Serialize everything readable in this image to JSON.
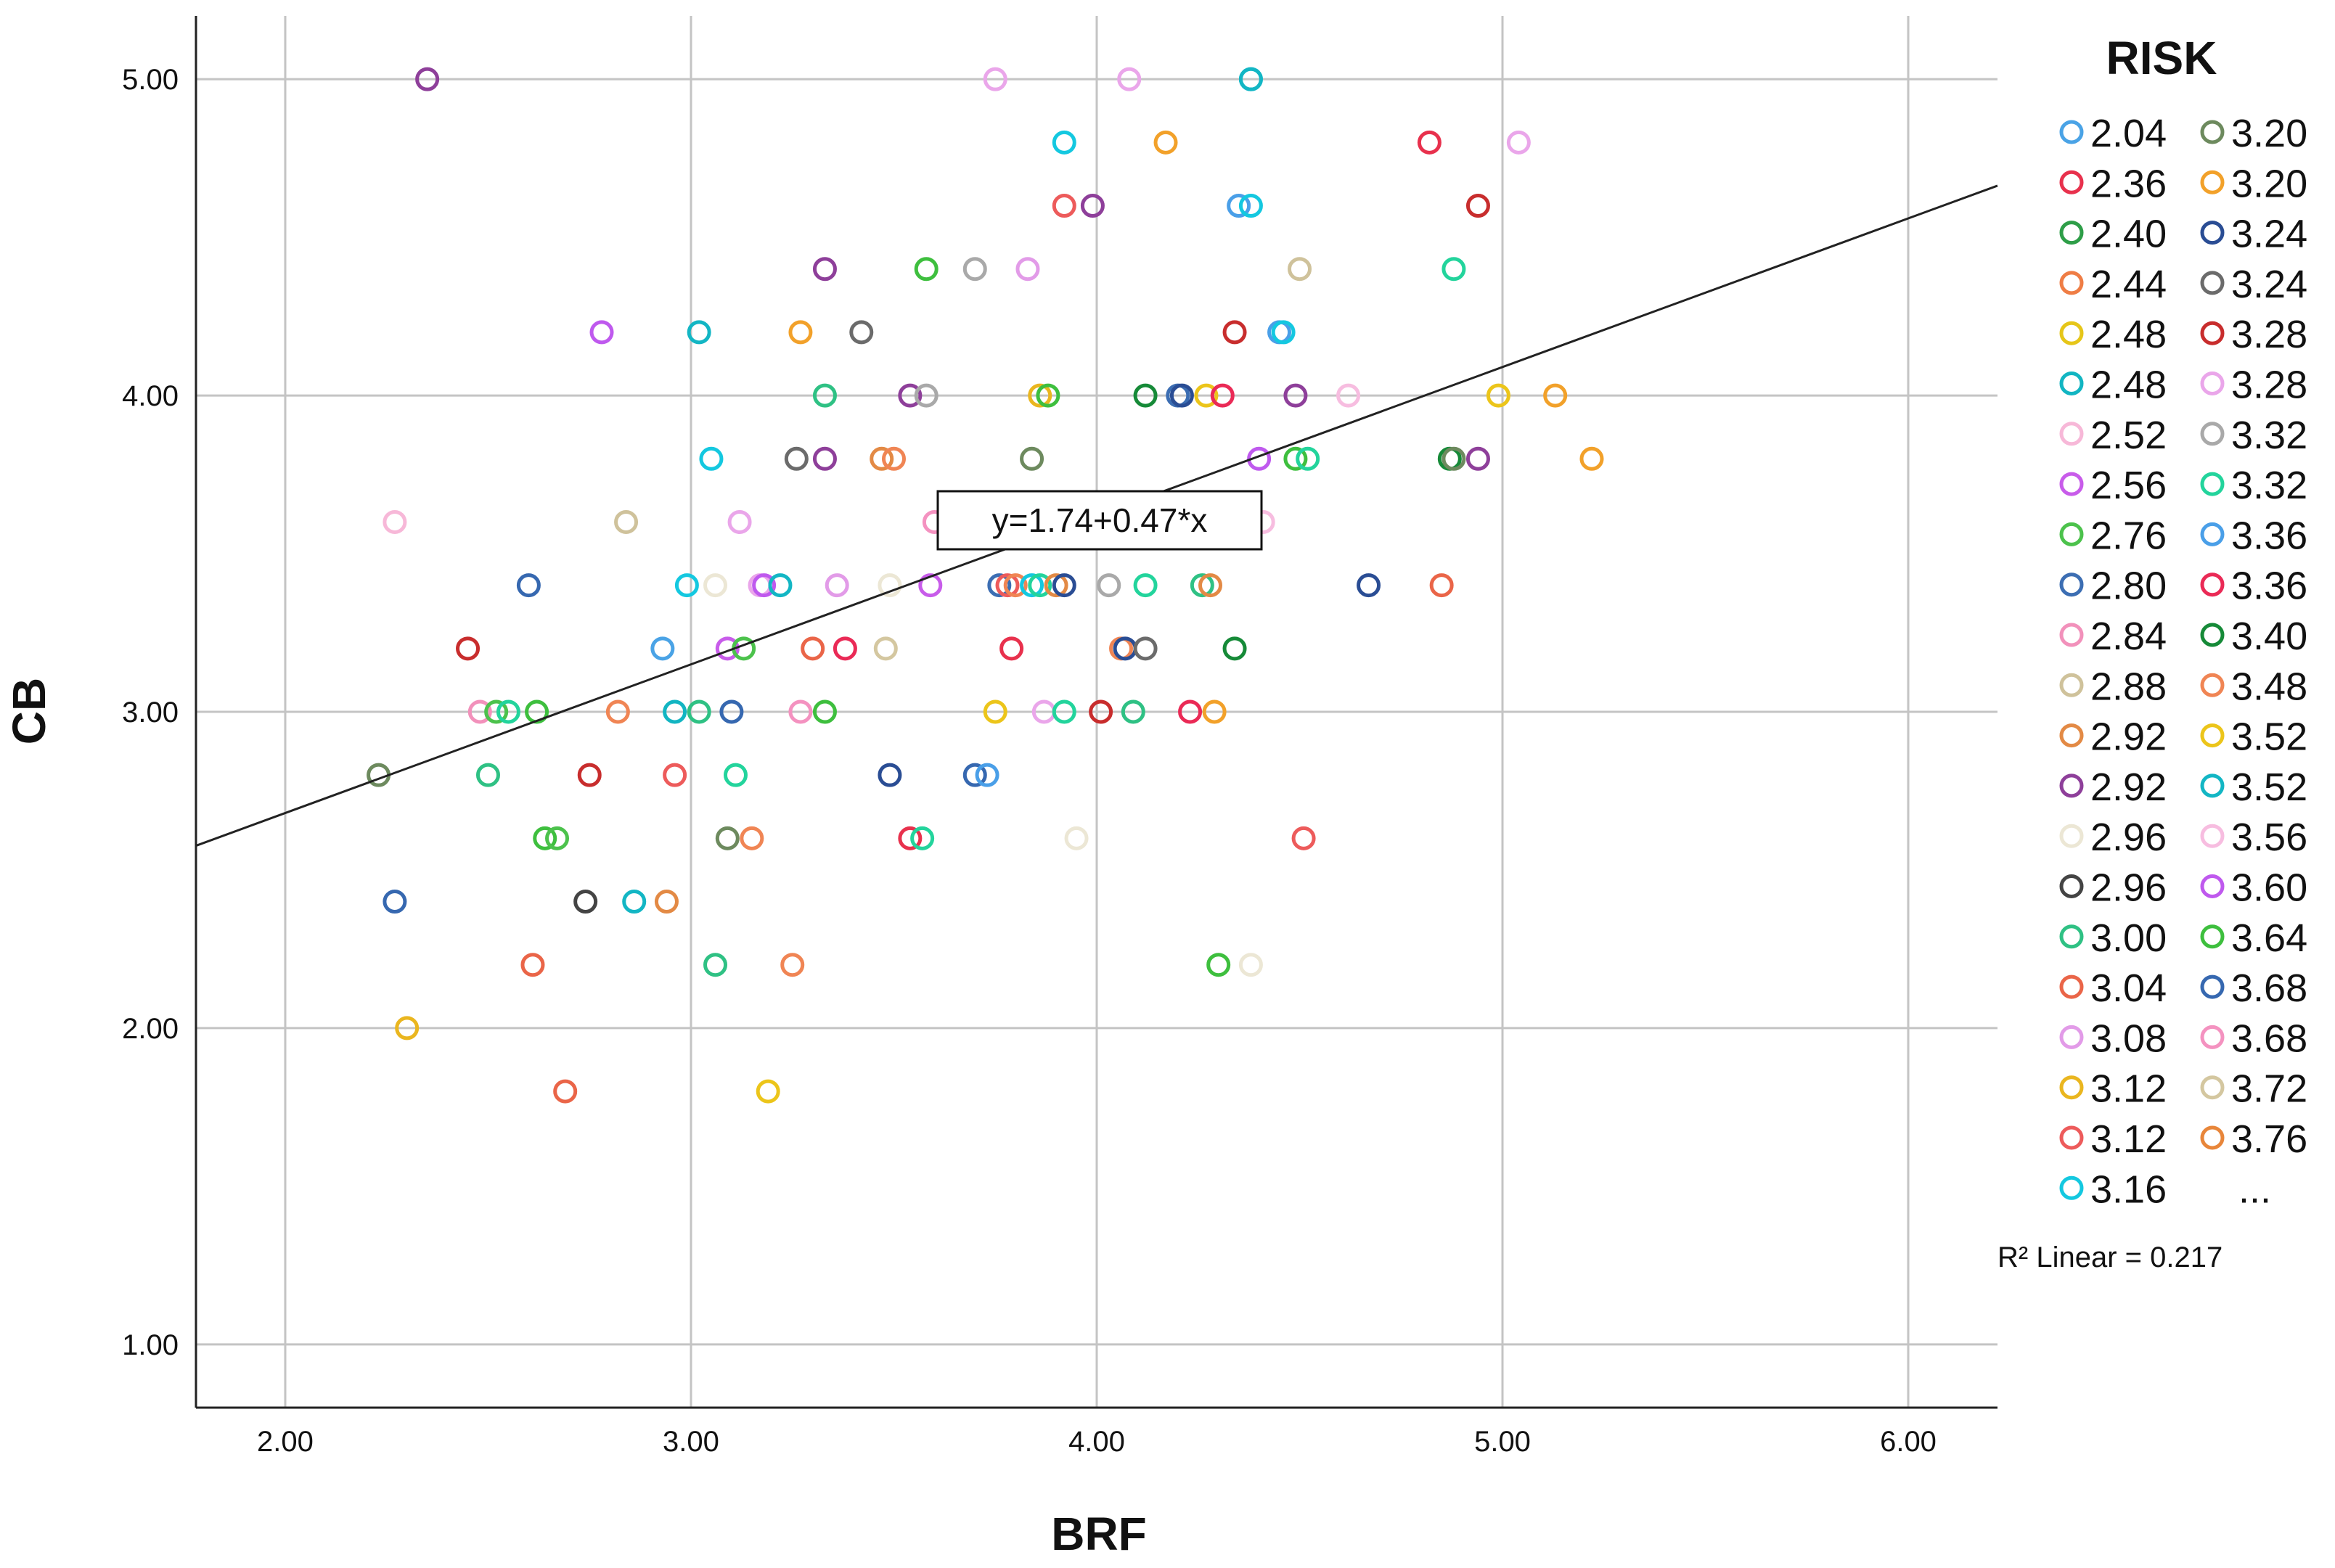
{
  "chart_data": {
    "type": "scatter",
    "xlabel": "BRF",
    "ylabel": "CB",
    "xlim": [
      1.78,
      6.22
    ],
    "ylim": [
      0.8,
      5.2
    ],
    "x_ticks": [
      "2.00",
      "3.00",
      "4.00",
      "5.00",
      "6.00"
    ],
    "y_ticks": [
      "1.00",
      "2.00",
      "3.00",
      "4.00",
      "5.00"
    ],
    "grid": true,
    "marker": "open-circle",
    "fit_line": {
      "type": "linear",
      "intercept": 1.74,
      "slope": 0.47,
      "equation_label": "y=1.74+0.47*x",
      "r2_label": "R² Linear = 0.217"
    },
    "legend": {
      "title": "RISK",
      "placement": "right",
      "more_label": "...",
      "entries": [
        {
          "label": "2.04",
          "color": "#4aa3e6"
        },
        {
          "label": "2.36",
          "color": "#e8314d"
        },
        {
          "label": "2.40",
          "color": "#2e9e48"
        },
        {
          "label": "2.44",
          "color": "#ef7d45"
        },
        {
          "label": "2.48",
          "color": "#e6c619"
        },
        {
          "label": "2.48",
          "color": "#12b5c2"
        },
        {
          "label": "2.52",
          "color": "#f7b8d8"
        },
        {
          "label": "2.56",
          "color": "#c85cea"
        },
        {
          "label": "2.76",
          "color": "#4cc24c"
        },
        {
          "label": "2.80",
          "color": "#3c6eb3"
        },
        {
          "label": "2.84",
          "color": "#f291bb"
        },
        {
          "label": "2.88",
          "color": "#cfc29b"
        },
        {
          "label": "2.92",
          "color": "#e38a45"
        },
        {
          "label": "2.92",
          "color": "#8e3f9a"
        },
        {
          "label": "2.96",
          "color": "#ece7d5"
        },
        {
          "label": "2.96",
          "color": "#444444"
        },
        {
          "label": "3.00",
          "color": "#2fc184"
        },
        {
          "label": "3.04",
          "color": "#ea6548"
        },
        {
          "label": "3.08",
          "color": "#e29be8"
        },
        {
          "label": "3.12",
          "color": "#eab61f"
        },
        {
          "label": "3.12",
          "color": "#ed5b5b"
        },
        {
          "label": "3.16",
          "color": "#14c8e0"
        },
        {
          "label": "3.20",
          "color": "#6d8a5e"
        },
        {
          "label": "3.20",
          "color": "#f2a12a"
        },
        {
          "label": "3.24",
          "color": "#2a4d94"
        },
        {
          "label": "3.24",
          "color": "#6b6b6b"
        },
        {
          "label": "3.28",
          "color": "#c82d2d"
        },
        {
          "label": "3.28",
          "color": "#eaa6ea"
        },
        {
          "label": "3.32",
          "color": "#a9a9a9"
        },
        {
          "label": "3.32",
          "color": "#23d49c"
        },
        {
          "label": "3.36",
          "color": "#4a9fe8"
        },
        {
          "label": "3.36",
          "color": "#ea2a56"
        },
        {
          "label": "3.40",
          "color": "#168a38"
        },
        {
          "label": "3.48",
          "color": "#f08554"
        },
        {
          "label": "3.52",
          "color": "#ecc51a"
        },
        {
          "label": "3.52",
          "color": "#13b6c4"
        },
        {
          "label": "3.56",
          "color": "#f7bde0"
        },
        {
          "label": "3.60",
          "color": "#bf59ee"
        },
        {
          "label": "3.64",
          "color": "#3ebf3e"
        },
        {
          "label": "3.68",
          "color": "#3668b0"
        },
        {
          "label": "3.68",
          "color": "#f492c0"
        },
        {
          "label": "3.72",
          "color": "#d4c7a0"
        },
        {
          "label": "3.76",
          "color": "#e8863a"
        }
      ]
    },
    "points": [
      [
        2.35,
        5.0,
        13
      ],
      [
        3.75,
        5.0,
        27
      ],
      [
        4.08,
        5.0,
        27
      ],
      [
        4.38,
        5.0,
        21
      ],
      [
        4.38,
        5.0,
        35
      ],
      [
        3.92,
        4.8,
        21
      ],
      [
        4.17,
        4.8,
        23
      ],
      [
        4.82,
        4.8,
        1
      ],
      [
        5.04,
        4.8,
        27
      ],
      [
        3.92,
        4.6,
        20
      ],
      [
        3.99,
        4.6,
        13
      ],
      [
        4.35,
        4.6,
        30
      ],
      [
        4.38,
        4.6,
        21
      ],
      [
        4.94,
        4.6,
        26
      ],
      [
        3.33,
        4.4,
        13
      ],
      [
        3.58,
        4.4,
        38
      ],
      [
        3.7,
        4.4,
        28
      ],
      [
        3.83,
        4.4,
        18
      ],
      [
        4.5,
        4.4,
        11
      ],
      [
        4.88,
        4.4,
        29
      ],
      [
        2.78,
        4.2,
        37
      ],
      [
        3.02,
        4.2,
        35
      ],
      [
        3.27,
        4.2,
        23
      ],
      [
        3.42,
        4.2,
        25
      ],
      [
        4.34,
        4.2,
        26
      ],
      [
        4.45,
        4.2,
        30
      ],
      [
        4.46,
        4.2,
        21
      ],
      [
        3.33,
        4.0,
        16
      ],
      [
        3.54,
        4.0,
        13
      ],
      [
        3.58,
        4.0,
        28
      ],
      [
        3.86,
        4.0,
        19
      ],
      [
        3.88,
        4.0,
        38
      ],
      [
        4.12,
        4.0,
        32
      ],
      [
        4.2,
        4.0,
        9
      ],
      [
        4.21,
        4.0,
        24
      ],
      [
        4.27,
        4.0,
        34
      ],
      [
        4.31,
        4.0,
        31
      ],
      [
        4.49,
        4.0,
        13
      ],
      [
        4.62,
        4.0,
        36
      ],
      [
        4.99,
        4.0,
        34
      ],
      [
        5.13,
        4.0,
        23
      ],
      [
        3.05,
        3.8,
        21
      ],
      [
        3.26,
        3.8,
        25
      ],
      [
        3.33,
        3.8,
        13
      ],
      [
        3.47,
        3.8,
        12
      ],
      [
        3.5,
        3.8,
        33
      ],
      [
        3.84,
        3.8,
        22
      ],
      [
        4.4,
        3.8,
        37
      ],
      [
        4.49,
        3.8,
        38
      ],
      [
        4.52,
        3.8,
        29
      ],
      [
        4.87,
        3.8,
        32
      ],
      [
        4.88,
        3.8,
        22
      ],
      [
        4.94,
        3.8,
        13
      ],
      [
        5.22,
        3.8,
        23
      ],
      [
        2.27,
        3.6,
        6
      ],
      [
        2.84,
        3.6,
        11
      ],
      [
        3.12,
        3.6,
        27
      ],
      [
        3.6,
        3.6,
        40
      ],
      [
        4.41,
        3.6,
        36
      ],
      [
        2.6,
        3.4,
        39
      ],
      [
        2.99,
        3.4,
        21
      ],
      [
        3.06,
        3.4,
        14
      ],
      [
        3.17,
        3.4,
        27
      ],
      [
        3.18,
        3.4,
        37
      ],
      [
        3.22,
        3.4,
        35
      ],
      [
        3.36,
        3.4,
        18
      ],
      [
        3.49,
        3.4,
        14
      ],
      [
        3.59,
        3.4,
        7
      ],
      [
        3.76,
        3.4,
        9
      ],
      [
        3.78,
        3.4,
        20
      ],
      [
        3.8,
        3.4,
        33
      ],
      [
        3.84,
        3.4,
        21
      ],
      [
        3.86,
        3.4,
        29
      ],
      [
        3.9,
        3.4,
        12
      ],
      [
        3.92,
        3.4,
        24
      ],
      [
        4.03,
        3.4,
        28
      ],
      [
        4.12,
        3.4,
        29
      ],
      [
        4.26,
        3.4,
        16
      ],
      [
        4.28,
        3.4,
        12
      ],
      [
        4.67,
        3.4,
        24
      ],
      [
        4.85,
        3.4,
        17
      ],
      [
        2.45,
        3.2,
        26
      ],
      [
        2.93,
        3.2,
        0
      ],
      [
        3.09,
        3.2,
        7
      ],
      [
        3.13,
        3.2,
        8
      ],
      [
        3.3,
        3.2,
        17
      ],
      [
        3.38,
        3.2,
        31
      ],
      [
        3.48,
        3.2,
        41
      ],
      [
        3.79,
        3.2,
        1
      ],
      [
        4.06,
        3.2,
        33
      ],
      [
        4.07,
        3.2,
        24
      ],
      [
        4.12,
        3.2,
        25
      ],
      [
        4.34,
        3.2,
        32
      ],
      [
        2.48,
        3.0,
        10
      ],
      [
        2.52,
        3.0,
        8
      ],
      [
        2.55,
        3.0,
        29
      ],
      [
        2.62,
        3.0,
        38
      ],
      [
        2.82,
        3.0,
        33
      ],
      [
        2.96,
        3.0,
        5
      ],
      [
        3.02,
        3.0,
        16
      ],
      [
        3.1,
        3.0,
        39
      ],
      [
        3.27,
        3.0,
        40
      ],
      [
        3.33,
        3.0,
        38
      ],
      [
        3.75,
        3.0,
        34
      ],
      [
        3.87,
        3.0,
        27
      ],
      [
        3.92,
        3.0,
        29
      ],
      [
        4.01,
        3.0,
        26
      ],
      [
        4.09,
        3.0,
        16
      ],
      [
        4.23,
        3.0,
        31
      ],
      [
        4.29,
        3.0,
        23
      ],
      [
        2.23,
        2.8,
        22
      ],
      [
        2.5,
        2.8,
        16
      ],
      [
        2.75,
        2.8,
        26
      ],
      [
        2.96,
        2.8,
        20
      ],
      [
        3.11,
        2.8,
        29
      ],
      [
        3.49,
        2.8,
        24
      ],
      [
        3.7,
        2.8,
        39
      ],
      [
        3.73,
        2.8,
        30
      ],
      [
        2.64,
        2.6,
        38
      ],
      [
        2.67,
        2.6,
        8
      ],
      [
        3.09,
        2.6,
        22
      ],
      [
        3.15,
        2.6,
        33
      ],
      [
        3.54,
        2.6,
        1
      ],
      [
        3.57,
        2.6,
        29
      ],
      [
        3.95,
        2.6,
        14
      ],
      [
        4.51,
        2.6,
        20
      ],
      [
        2.27,
        2.4,
        39
      ],
      [
        2.74,
        2.4,
        15
      ],
      [
        2.86,
        2.4,
        35
      ],
      [
        2.94,
        2.4,
        12
      ],
      [
        2.61,
        2.2,
        17
      ],
      [
        3.06,
        2.2,
        16
      ],
      [
        3.25,
        2.2,
        33
      ],
      [
        4.3,
        2.2,
        38
      ],
      [
        4.38,
        2.2,
        14
      ],
      [
        2.3,
        2.0,
        19
      ],
      [
        2.69,
        1.8,
        17
      ],
      [
        3.19,
        1.8,
        34
      ]
    ]
  }
}
